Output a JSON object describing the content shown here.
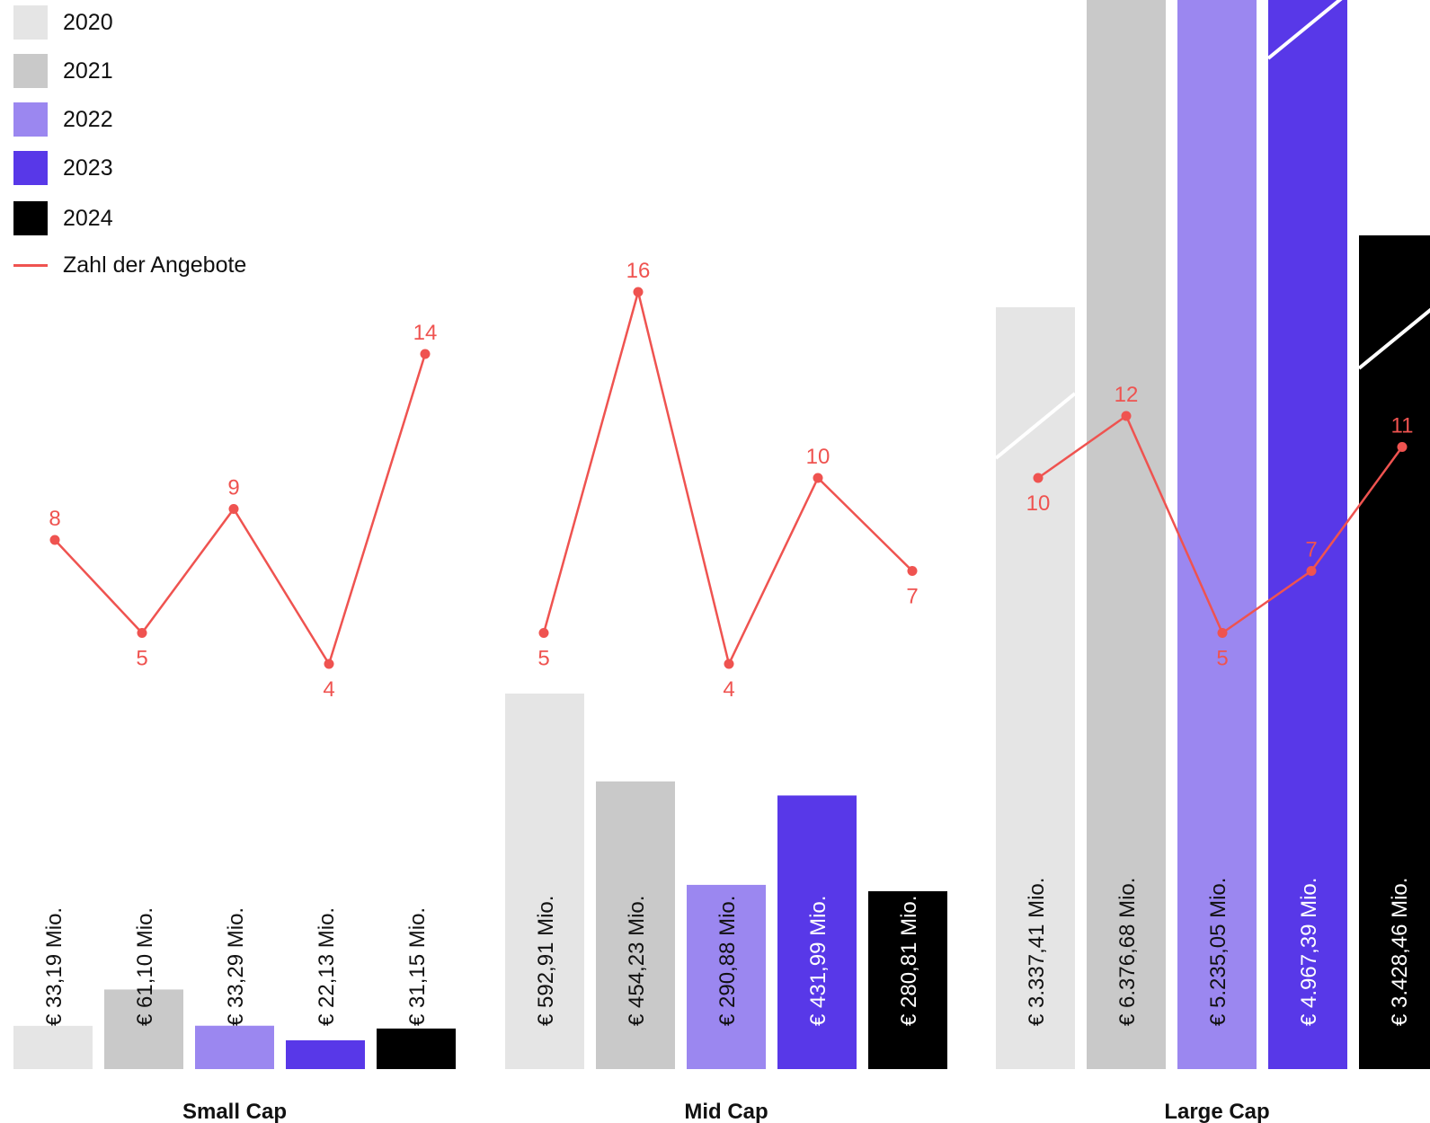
{
  "chart_data": {
    "type": "bar",
    "groups": [
      "Small Cap",
      "Mid Cap",
      "Large Cap"
    ],
    "series": [
      {
        "name": "2020",
        "color": "#e5e5e5",
        "values": [
          33.19,
          592.91,
          3337.41
        ],
        "labels": [
          "€ 33,19 Mio.",
          "€ 592,91 Mio.",
          "€ 3.337,41 Mio."
        ]
      },
      {
        "name": "2021",
        "color": "#c9c9c9",
        "values": [
          61.1,
          454.23,
          6376.68
        ],
        "labels": [
          "€ 61,10 Mio.",
          "€ 454,23 Mio.",
          "€ 6.376,68 Mio."
        ]
      },
      {
        "name": "2022",
        "color": "#9b87f0",
        "values": [
          33.29,
          290.88,
          5235.05
        ],
        "labels": [
          "€ 33,29 Mio.",
          "€ 290,88 Mio.",
          "€ 5.235,05 Mio."
        ]
      },
      {
        "name": "2023",
        "color": "#5838e8",
        "values": [
          22.13,
          431.99,
          4967.39
        ],
        "labels": [
          "€ 22,13 Mio.",
          "€ 431,99 Mio.",
          "€ 4.967,39 Mio."
        ]
      },
      {
        "name": "2024",
        "color": "#000000",
        "values": [
          31.15,
          280.81,
          3428.46
        ],
        "labels": [
          "€ 31,15 Mio.",
          "€ 280,81 Mio.",
          "€ 3.428,46 Mio."
        ]
      }
    ],
    "line_series": {
      "name": "Zahl der Angebote",
      "color": "#ef5350",
      "values": [
        [
          8,
          5,
          9,
          4,
          14
        ],
        [
          5,
          16,
          4,
          10,
          7
        ],
        [
          10,
          12,
          5,
          7,
          11
        ]
      ]
    }
  }
}
